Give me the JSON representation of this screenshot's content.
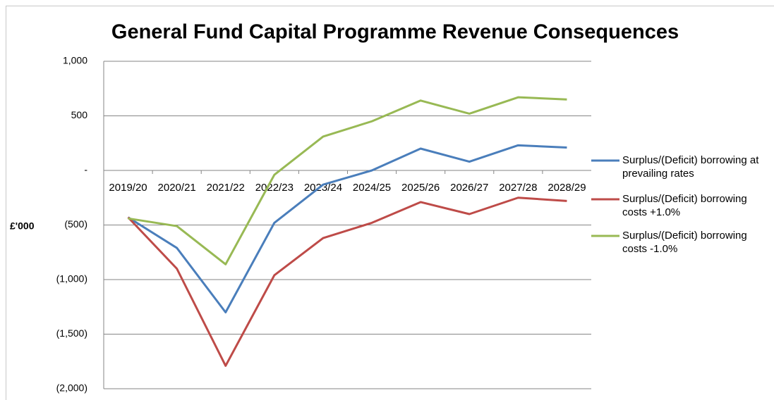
{
  "chart_data": {
    "type": "line",
    "title": "General Fund Capital Programme Revenue Consequences",
    "y_label": "£'000",
    "categories": [
      "2019/20",
      "2020/21",
      "2021/22",
      "2022/23",
      "2023/24",
      "2024/25",
      "2025/26",
      "2026/27",
      "2027/28",
      "2028/29"
    ],
    "series": [
      {
        "name": "Surplus/(Deficit) borrowing at prevailing rates",
        "color": "#4a7ebb",
        "values": [
          -430,
          -710,
          -1300,
          -480,
          -130,
          0,
          200,
          80,
          230,
          210
        ]
      },
      {
        "name": "Surplus/(Deficit) borrowing costs +1.0%",
        "color": "#be4b48",
        "values": [
          -430,
          -900,
          -1790,
          -960,
          -620,
          -480,
          -290,
          -400,
          -250,
          -280
        ]
      },
      {
        "name": "Surplus/(Deficit) borrowing costs -1.0%",
        "color": "#98b954",
        "values": [
          -440,
          -510,
          -860,
          -40,
          310,
          450,
          640,
          520,
          670,
          650
        ]
      }
    ],
    "ylim": [
      -2000,
      1000
    ],
    "yticks": [
      {
        "value": 1000,
        "label": "1,000"
      },
      500,
      {
        "value": 0,
        "label": "-"
      },
      {
        "value": -500,
        "label": "(500)"
      },
      {
        "value": -1000,
        "label": "(1,000)"
      },
      {
        "value": -1500,
        "label": "(1,500)"
      },
      {
        "value": -2000,
        "label": "(2,000)"
      }
    ],
    "grid": true,
    "legend": "right"
  }
}
